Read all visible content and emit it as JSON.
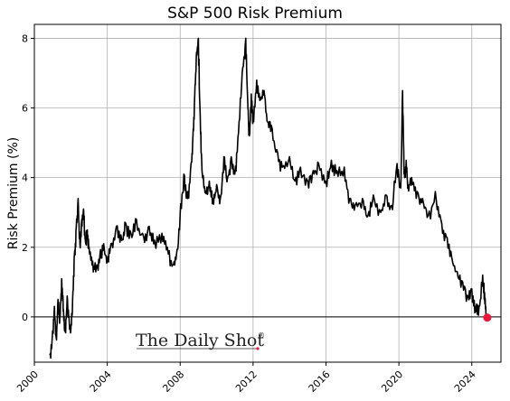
{
  "chart_data": {
    "type": "line",
    "title": "S&P 500 Risk Premium",
    "xlabel": "",
    "ylabel": "Risk Premium (%)",
    "xlim": [
      2000.0,
      2025.6
    ],
    "ylim": [
      -1.3,
      8.4
    ],
    "xticks": [
      2000,
      2004,
      2008,
      2012,
      2016,
      2020,
      2024
    ],
    "yticks": [
      0,
      2,
      4,
      6,
      8
    ],
    "grid": true,
    "zero_line": true,
    "colors": {
      "line": "#000000",
      "marker": "#e8183c",
      "grid": "#b0b0b0"
    },
    "series": [
      {
        "x": [
          2000.85,
          2001.0,
          2001.1,
          2001.2,
          2001.3,
          2001.4,
          2001.5,
          2001.6,
          2001.7,
          2001.8,
          2001.9,
          2002.0,
          2002.1,
          2002.2,
          2002.3,
          2002.4,
          2002.5,
          2002.6,
          2002.7,
          2002.8,
          2002.9,
          2003.0,
          2003.2,
          2003.4,
          2003.6,
          2003.8,
          2004.0,
          2004.2,
          2004.5,
          2004.8,
          2005.0,
          2005.3,
          2005.6,
          2006.0,
          2006.3,
          2006.6,
          2007.0,
          2007.3,
          2007.6,
          2007.8,
          2008.0,
          2008.2,
          2008.4,
          2008.6,
          2008.7,
          2008.8,
          2008.9,
          2009.0,
          2009.1,
          2009.2,
          2009.4,
          2009.6,
          2009.8,
          2010.0,
          2010.2,
          2010.4,
          2010.6,
          2010.8,
          2011.0,
          2011.2,
          2011.4,
          2011.6,
          2011.7,
          2011.8,
          2011.9,
          2012.0,
          2012.2,
          2012.4,
          2012.6,
          2012.8,
          2013.0,
          2013.3,
          2013.6,
          2014.0,
          2014.3,
          2014.6,
          2015.0,
          2015.3,
          2015.6,
          2016.0,
          2016.3,
          2016.6,
          2017.0,
          2017.3,
          2017.6,
          2018.0,
          2018.3,
          2018.6,
          2019.0,
          2019.3,
          2019.6,
          2019.9,
          2020.1,
          2020.2,
          2020.3,
          2020.4,
          2020.5,
          2020.7,
          2021.0,
          2021.3,
          2021.6,
          2022.0,
          2022.3,
          2022.6,
          2022.9,
          2023.2,
          2023.5,
          2023.8,
          2024.0,
          2024.2,
          2024.4,
          2024.6,
          2024.7,
          2024.8
        ],
        "y": [
          -1.1,
          -0.4,
          0.3,
          -0.6,
          0.5,
          0.0,
          1.1,
          0.2,
          -0.4,
          0.6,
          0.0,
          -0.4,
          0.5,
          1.8,
          2.6,
          3.4,
          2.1,
          2.8,
          3.1,
          2.2,
          2.5,
          2.0,
          1.6,
          1.4,
          1.8,
          2.1,
          1.6,
          2.1,
          2.6,
          2.2,
          2.7,
          2.4,
          2.8,
          2.3,
          2.6,
          2.2,
          2.4,
          2.0,
          1.5,
          1.8,
          3.0,
          4.1,
          3.4,
          4.4,
          5.2,
          6.4,
          7.6,
          8.0,
          5.8,
          4.2,
          3.6,
          3.9,
          3.4,
          3.8,
          3.4,
          4.6,
          4.0,
          4.6,
          4.1,
          5.3,
          7.0,
          8.0,
          6.3,
          5.2,
          6.4,
          5.6,
          6.8,
          6.3,
          6.5,
          5.6,
          5.5,
          4.8,
          4.3,
          4.6,
          3.9,
          4.3,
          3.9,
          4.2,
          4.4,
          3.9,
          4.5,
          4.2,
          4.3,
          3.4,
          3.2,
          3.4,
          2.9,
          3.5,
          3.0,
          3.5,
          3.2,
          4.4,
          3.7,
          6.5,
          4.1,
          4.5,
          3.8,
          4.0,
          3.6,
          3.4,
          2.9,
          3.6,
          2.8,
          2.3,
          1.7,
          1.3,
          1.0,
          0.6,
          0.8,
          0.3,
          0.3,
          1.2,
          0.7,
          0.0
        ]
      }
    ],
    "endpoint": {
      "x": 2024.85,
      "y": -0.02
    },
    "watermark": {
      "text": "The Daily Shot",
      "mark": "®"
    }
  }
}
